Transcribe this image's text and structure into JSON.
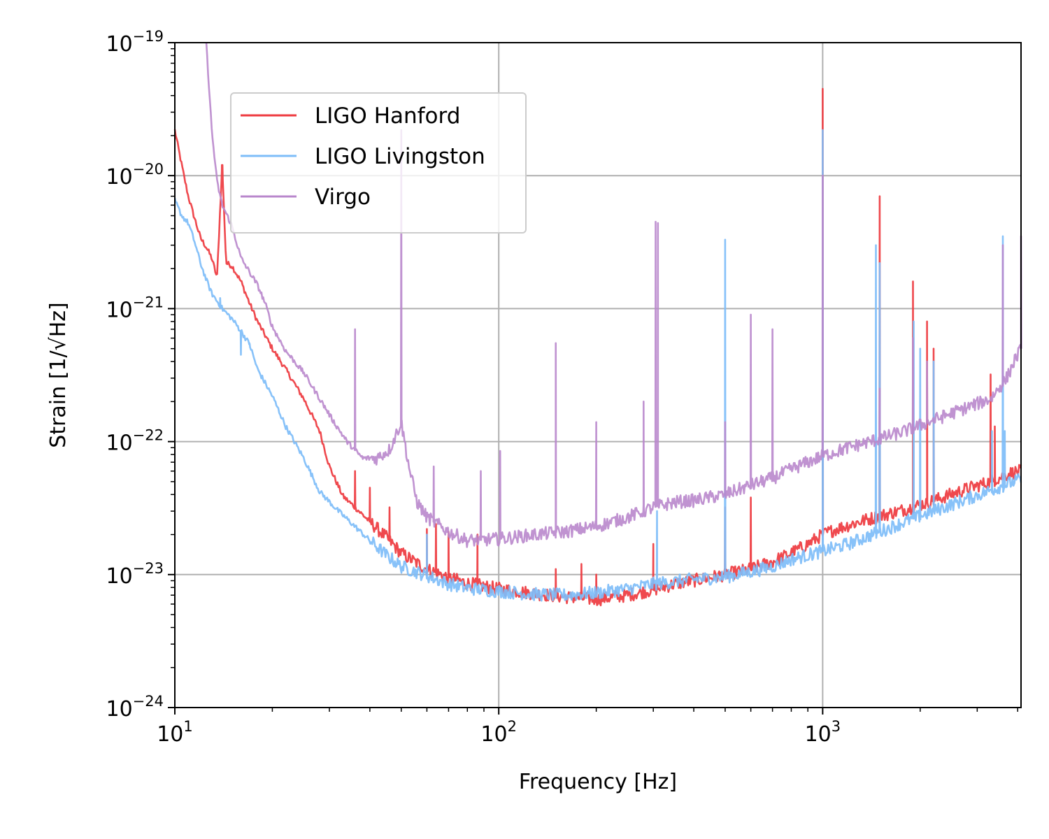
{
  "chart_data": {
    "type": "line",
    "xlabel": "Frequency [Hz]",
    "ylabel": "Strain [1/√Hz]",
    "x_scale": "log",
    "y_scale": "log",
    "xlim": [
      10,
      4096
    ],
    "ylim": [
      1e-24,
      1e-19
    ],
    "grid": true,
    "legend_position": "upper-left",
    "x_ticks": [
      {
        "value": 10,
        "base": "10",
        "exp": "1"
      },
      {
        "value": 100,
        "base": "10",
        "exp": "2"
      },
      {
        "value": 1000,
        "base": "10",
        "exp": "3"
      }
    ],
    "y_ticks": [
      {
        "value": 1e-24,
        "base": "10",
        "exp": "−24"
      },
      {
        "value": 1e-23,
        "base": "10",
        "exp": "−23"
      },
      {
        "value": 1e-22,
        "base": "10",
        "exp": "−22"
      },
      {
        "value": 1e-21,
        "base": "10",
        "exp": "−21"
      },
      {
        "value": 1e-20,
        "base": "10",
        "exp": "−20"
      },
      {
        "value": 1e-19,
        "base": "10",
        "exp": "−19"
      }
    ],
    "series": [
      {
        "name": "LIGO Hanford",
        "color": "#ee3a3f",
        "points": [
          [
            10,
            2.2e-20
          ],
          [
            10.5,
            1.2e-20
          ],
          [
            11,
            7e-21
          ],
          [
            11.5,
            4.8e-21
          ],
          [
            12,
            3.4e-21
          ],
          [
            12.5,
            2.9e-21
          ],
          [
            13,
            2.4e-21
          ],
          [
            13.5,
            1.7e-21
          ],
          [
            14,
            1.2e-20
          ],
          [
            14.4,
            2.2e-21
          ],
          [
            15,
            2.1e-21
          ],
          [
            16,
            1.6e-21
          ],
          [
            17,
            1.1e-21
          ],
          [
            18,
            8e-22
          ],
          [
            20,
            5e-22
          ],
          [
            22,
            3.5e-22
          ],
          [
            25,
            2.1e-22
          ],
          [
            28,
            1.2e-22
          ],
          [
            30,
            6.5e-23
          ],
          [
            33,
            3.9e-23
          ],
          [
            36,
            3.2e-23
          ],
          [
            40,
            2.5e-23
          ],
          [
            45,
            1.9e-23
          ],
          [
            50,
            1.45e-23
          ],
          [
            55,
            1.25e-23
          ],
          [
            60,
            1.1e-23
          ],
          [
            70,
            9.5e-24
          ],
          [
            80,
            8.6e-24
          ],
          [
            100,
            7.8e-24
          ],
          [
            130,
            7.2e-24
          ],
          [
            160,
            6.8e-24
          ],
          [
            200,
            6.5e-24
          ],
          [
            250,
            7e-24
          ],
          [
            300,
            7.7e-24
          ],
          [
            350,
            8.5e-24
          ],
          [
            400,
            9e-24
          ],
          [
            500,
            1e-23
          ],
          [
            600,
            1.1e-23
          ],
          [
            700,
            1.25e-23
          ],
          [
            800,
            1.45e-23
          ],
          [
            900,
            1.7e-23
          ],
          [
            1000,
            2e-23
          ],
          [
            1100,
            2.2e-23
          ],
          [
            1300,
            2.5e-23
          ],
          [
            1500,
            2.75e-23
          ],
          [
            1800,
            3.1e-23
          ],
          [
            2200,
            3.6e-23
          ],
          [
            2700,
            4.3e-23
          ],
          [
            3300,
            5e-23
          ],
          [
            3800,
            5.8e-23
          ],
          [
            4096,
            6e-23
          ]
        ],
        "spikes": [
          [
            14,
            1.2e-20
          ],
          [
            36,
            6e-23
          ],
          [
            40,
            4.5e-23
          ],
          [
            46,
            3.2e-23
          ],
          [
            60,
            2.2e-23
          ],
          [
            64,
            2.4e-23
          ],
          [
            70,
            2.1e-23
          ],
          [
            86,
            2e-23
          ],
          [
            150,
            1.1e-23
          ],
          [
            180,
            1.2e-23
          ],
          [
            200,
            1e-23
          ],
          [
            300,
            1.7e-23
          ],
          [
            500,
            3.2e-23
          ],
          [
            600,
            3.8e-23
          ],
          [
            1000,
            4.5e-20
          ],
          [
            1500,
            7e-21
          ],
          [
            1900,
            1.6e-21
          ],
          [
            2100,
            8e-22
          ],
          [
            2200,
            5e-22
          ],
          [
            3300,
            3.2e-22
          ],
          [
            3400,
            1.3e-22
          ]
        ]
      },
      {
        "name": "LIGO Livingston",
        "color": "#7ebdf8",
        "points": [
          [
            10,
            6.5e-21
          ],
          [
            10.5,
            5e-21
          ],
          [
            11,
            4.4e-21
          ],
          [
            11.5,
            3.2e-21
          ],
          [
            12,
            2.2e-21
          ],
          [
            12.5,
            1.65e-21
          ],
          [
            13,
            1.3e-21
          ],
          [
            14,
            1e-21
          ],
          [
            15,
            8.4e-22
          ],
          [
            16,
            6.8e-22
          ],
          [
            17,
            5.4e-22
          ],
          [
            18,
            3.5e-22
          ],
          [
            20,
            2.2e-22
          ],
          [
            22,
            1.3e-22
          ],
          [
            25,
            7.5e-23
          ],
          [
            28,
            4.2e-23
          ],
          [
            32,
            3e-23
          ],
          [
            36,
            2.3e-23
          ],
          [
            40,
            1.8e-23
          ],
          [
            45,
            1.4e-23
          ],
          [
            50,
            1.15e-23
          ],
          [
            60,
            9.8e-24
          ],
          [
            70,
            8.5e-24
          ],
          [
            80,
            7.9e-24
          ],
          [
            100,
            7.5e-24
          ],
          [
            130,
            7.1e-24
          ],
          [
            160,
            7e-24
          ],
          [
            200,
            7.3e-24
          ],
          [
            250,
            7.8e-24
          ],
          [
            300,
            8.5e-24
          ],
          [
            400,
            9.2e-24
          ],
          [
            500,
            9.6e-24
          ],
          [
            600,
            1.05e-23
          ],
          [
            700,
            1.15e-23
          ],
          [
            800,
            1.3e-23
          ],
          [
            1000,
            1.5e-23
          ],
          [
            1200,
            1.7e-23
          ],
          [
            1500,
            2.1e-23
          ],
          [
            1800,
            2.5e-23
          ],
          [
            2200,
            3e-23
          ],
          [
            2700,
            3.6e-23
          ],
          [
            3300,
            4.3e-23
          ],
          [
            3800,
            4.9e-23
          ],
          [
            4096,
            5.2e-23
          ]
        ],
        "spikes": [
          [
            13.8,
            1.2e-21
          ],
          [
            16,
            4.5e-22
          ],
          [
            17,
            5.5e-22
          ],
          [
            60,
            2e-23
          ],
          [
            308,
            3e-23
          ],
          [
            500,
            3.3e-21
          ],
          [
            1000,
            2.2e-20
          ],
          [
            1460,
            3e-21
          ],
          [
            1500,
            2.2e-21
          ],
          [
            1910,
            8e-22
          ],
          [
            2000,
            5e-22
          ],
          [
            2200,
            4e-22
          ],
          [
            3330,
            1.2e-22
          ],
          [
            3600,
            3.5e-21
          ],
          [
            3650,
            1.2e-22
          ]
        ]
      },
      {
        "name": "Virgo",
        "color": "#b987cc",
        "points": [
          [
            12.5,
            1e-19
          ],
          [
            13,
            2.2e-20
          ],
          [
            13.5,
            9e-21
          ],
          [
            14,
            6e-21
          ],
          [
            15,
            4.2e-21
          ],
          [
            16,
            2.4e-21
          ],
          [
            18,
            1.5e-21
          ],
          [
            19,
            1.1e-21
          ],
          [
            20,
            7.3e-22
          ],
          [
            22,
            4.8e-22
          ],
          [
            25,
            3.3e-22
          ],
          [
            28,
            2.1e-22
          ],
          [
            31,
            1.4e-22
          ],
          [
            34,
            1e-22
          ],
          [
            38,
            7.5e-23
          ],
          [
            42,
            7.5e-23
          ],
          [
            46,
            8.7e-23
          ],
          [
            50,
            1.4e-22
          ],
          [
            53,
            6.2e-23
          ],
          [
            56,
            3.5e-23
          ],
          [
            60,
            2.7e-23
          ],
          [
            70,
            2.1e-23
          ],
          [
            80,
            1.8e-23
          ],
          [
            100,
            1.85e-23
          ],
          [
            130,
            2e-23
          ],
          [
            160,
            2.1e-23
          ],
          [
            200,
            2.3e-23
          ],
          [
            250,
            2.7e-23
          ],
          [
            300,
            3.2e-23
          ],
          [
            350,
            3.5e-23
          ],
          [
            400,
            3.6e-23
          ],
          [
            500,
            4e-23
          ],
          [
            600,
            4.7e-23
          ],
          [
            700,
            5.3e-23
          ],
          [
            800,
            6.2e-23
          ],
          [
            1000,
            7.8e-23
          ],
          [
            1200,
            9e-23
          ],
          [
            1500,
            1.05e-22
          ],
          [
            1800,
            1.2e-22
          ],
          [
            2200,
            1.45e-22
          ],
          [
            2700,
            1.75e-22
          ],
          [
            3300,
            2.1e-22
          ],
          [
            3700,
            3e-22
          ],
          [
            3900,
            4e-22
          ],
          [
            4096,
            5e-22
          ]
        ],
        "spikes": [
          [
            36,
            7e-22
          ],
          [
            50,
            2.2e-20
          ],
          [
            63,
            6.5e-23
          ],
          [
            88,
            6e-23
          ],
          [
            101,
            8.5e-23
          ],
          [
            150,
            5.5e-22
          ],
          [
            200,
            1.4e-22
          ],
          [
            280,
            2e-22
          ],
          [
            305,
            4.5e-21
          ],
          [
            310,
            4.4e-21
          ],
          [
            500,
            1.4e-22
          ],
          [
            600,
            9e-22
          ],
          [
            700,
            7e-22
          ],
          [
            1000,
            1e-20
          ],
          [
            1500,
            2.5e-22
          ],
          [
            1900,
            6e-22
          ],
          [
            2100,
            4e-22
          ],
          [
            3600,
            3e-21
          ],
          [
            4096,
            3.5e-21
          ]
        ]
      }
    ]
  }
}
